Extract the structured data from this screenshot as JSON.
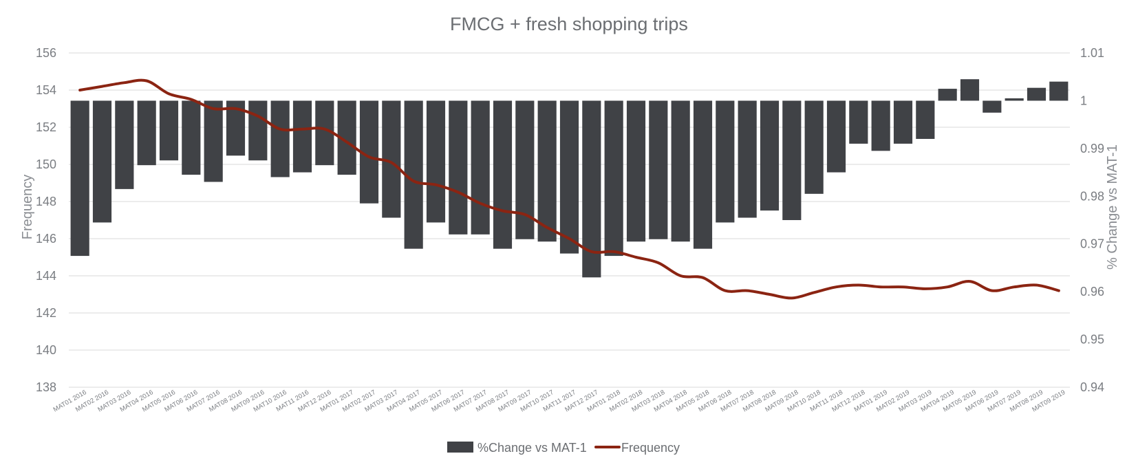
{
  "chart_data": {
    "type": "bar",
    "title": "FMCG + fresh shopping trips",
    "ylabel": "Frequency",
    "y2label": "% Change vs MAT-1",
    "ylim": [
      138,
      156
    ],
    "y_ticks": [
      "138",
      "140",
      "142",
      "144",
      "146",
      "148",
      "150",
      "152",
      "154",
      "156"
    ],
    "y2lim": [
      0.94,
      1.01
    ],
    "y2_ticks": [
      "0.94",
      "0.95",
      "0.96",
      "0.97",
      "0.98",
      "0.99",
      "1",
      "1.01"
    ],
    "grid": true,
    "legend_position": "bottom",
    "categories": [
      "MAT01 2016",
      "MAT02 2016",
      "MAT03 2016",
      "MAT04 2016",
      "MAT05 2016",
      "MAT06 2016",
      "MAT07 2016",
      "MAT08 2016",
      "MAT09 2016",
      "MAT10 2016",
      "MAT11 2016",
      "MAT12 2016",
      "MAT01 2017",
      "MAT02 2017",
      "MAT03 2017",
      "MAT04 2017",
      "MAT05 2017",
      "MAT06 2017",
      "MAT07 2017",
      "MAT08 2017",
      "MAT09 2017",
      "MAT10 2017",
      "MAT11 2017",
      "MAT12 2017",
      "MAT01 2018",
      "MAT02 2018",
      "MAT03 2018",
      "MAT04 2018",
      "MAT05 2018",
      "MAT06 2018",
      "MAT07 2018",
      "MAT08 2018",
      "MAT09 2018",
      "MAT10 2018",
      "MAT11 2018",
      "MAT12 2018",
      "MAT01 2019",
      "MAT02 2019",
      "MAT03 2019",
      "MAT04 2019",
      "MAT05 2019",
      "MAT06 2019",
      "MAT07 2019",
      "MAT08 2019",
      "MAT09 2019"
    ],
    "series": [
      {
        "name": "%Change vs MAT-1",
        "type": "bar",
        "axis": "right",
        "color": "#404246",
        "values": [
          0.9675,
          0.9745,
          0.9815,
          0.9865,
          0.9875,
          0.9845,
          0.983,
          0.9885,
          0.9875,
          0.984,
          0.985,
          0.9865,
          0.9845,
          0.9785,
          0.9755,
          0.969,
          0.9745,
          0.972,
          0.972,
          0.969,
          0.971,
          0.9705,
          0.968,
          0.963,
          0.9675,
          0.9705,
          0.971,
          0.9705,
          0.969,
          0.9745,
          0.9755,
          0.977,
          0.975,
          0.9805,
          0.985,
          0.991,
          0.9895,
          0.991,
          0.992,
          1.0025,
          1.0045,
          0.9975,
          1.0005,
          1.0027,
          1.004
        ]
      },
      {
        "name": "Frequency",
        "type": "line",
        "axis": "left",
        "color": "#8b2412",
        "values": [
          154.0,
          154.2,
          154.4,
          154.5,
          153.8,
          153.5,
          153.0,
          153.0,
          152.6,
          151.9,
          151.9,
          151.9,
          151.2,
          150.4,
          150.1,
          149.1,
          148.9,
          148.5,
          147.9,
          147.5,
          147.3,
          146.6,
          146.0,
          145.3,
          145.3,
          145.0,
          144.7,
          144.0,
          143.9,
          143.2,
          143.2,
          143.0,
          142.8,
          143.1,
          143.4,
          143.5,
          143.4,
          143.4,
          143.3,
          143.4,
          143.7,
          143.2,
          143.4,
          143.5,
          143.2
        ]
      }
    ]
  }
}
